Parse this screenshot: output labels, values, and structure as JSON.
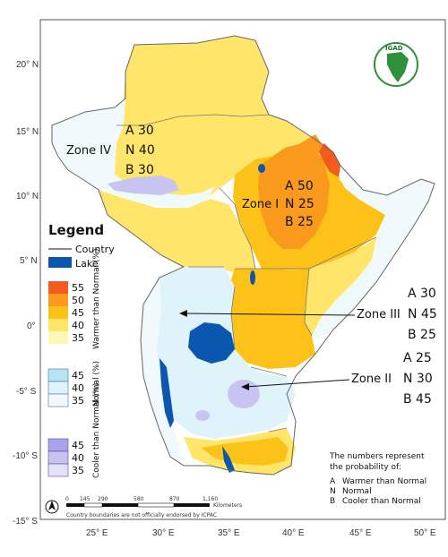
{
  "map": {
    "lat_labels": [
      "20° N",
      "15° N",
      "10° N",
      "5° N",
      "0°",
      "-5° S",
      "-10° S",
      "-15° S"
    ],
    "lon_labels": [
      "25° E",
      "30° E",
      "35° E",
      "40° E",
      "45° E",
      "50° E"
    ]
  },
  "zones": [
    {
      "name": "Zone IV",
      "a": "A 30",
      "n": "N 40",
      "b": "B 30"
    },
    {
      "name": "Zone I",
      "a": "A 50",
      "n": "N 25",
      "b": "B 25"
    },
    {
      "name": "Zone III",
      "a": "A 30",
      "n": "N 45",
      "b": "B 25"
    },
    {
      "name": "Zone II",
      "a": "A 25",
      "n": "N 30",
      "b": "B 45"
    }
  ],
  "legend": {
    "title": "Legend",
    "country": "Country",
    "lake": "Lake",
    "warmer": {
      "label": "Warmer than Normal (%)",
      "values": [
        "55",
        "50",
        "45",
        "40",
        "35"
      ]
    },
    "normal": {
      "label": "Normal (%)",
      "values": [
        "45",
        "40",
        "35"
      ]
    },
    "cooler": {
      "label": "Cooler than Normal (%)",
      "values": [
        "45",
        "40",
        "35"
      ]
    }
  },
  "note": {
    "line1": "The numbers represent",
    "line2": "the probability of:",
    "items": [
      {
        "key": "A",
        "text": "Warmer than Normal"
      },
      {
        "key": "N",
        "text": "Normal"
      },
      {
        "key": "B",
        "text": "Cooler than Normal"
      }
    ]
  },
  "scale_bar": {
    "ticks": [
      "0",
      "145",
      "290",
      "580",
      "870",
      "1,160"
    ],
    "unit": "Kilometers"
  },
  "disclaimer": "Country boundaries are not officially endorsed by ICPAC",
  "logo": {
    "text": "IGAD"
  },
  "colors": {
    "w55": "#f25a1e",
    "w50": "#f99a1c",
    "w45": "#fcc217",
    "w40": "#ffe56a",
    "w35": "#fff7b8",
    "n45": "#b9e4f4",
    "n40": "#dff3fa",
    "n35": "#f0fafd",
    "c45": "#a9a3ea",
    "c40": "#c8c4f2",
    "c35": "#e4e2f8",
    "lake": "#0b57b0"
  }
}
